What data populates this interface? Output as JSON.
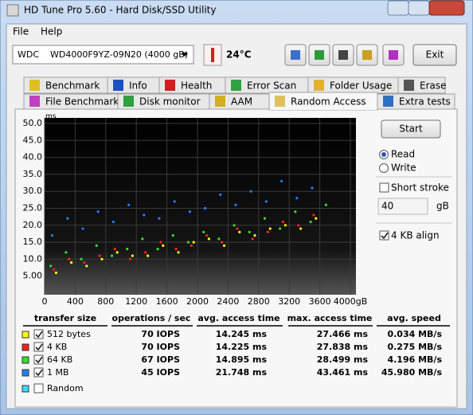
{
  "window": {
    "title": "HD Tune Pro 5.60 - Hard Disk/SSD Utility"
  },
  "menu": [
    "File",
    "Help"
  ],
  "toolbar": {
    "drive": "WDC    WD4000F9YZ-09N20 (4000 gB)",
    "temperature": "24°C",
    "exit": "Exit"
  },
  "tabs": {
    "row1": [
      "Benchmark",
      "Info",
      "Health",
      "Error Scan",
      "Folder Usage",
      "Erase"
    ],
    "row2": [
      "File Benchmark",
      "Disk monitor",
      "AAM",
      "Random Access",
      "Extra tests"
    ],
    "active": 3
  },
  "chart_data": {
    "type": "scatter",
    "y_unit": "ms",
    "ylim": [
      0,
      50
    ],
    "yticks": [
      {
        "value": 5,
        "label": "5.00"
      },
      {
        "value": 10,
        "label": "10.0"
      },
      {
        "value": 15,
        "label": "15.0"
      },
      {
        "value": 20,
        "label": "20.0"
      },
      {
        "value": 25,
        "label": "25.0"
      },
      {
        "value": 30,
        "label": "30.0"
      },
      {
        "value": 35,
        "label": "35.0"
      },
      {
        "value": 40,
        "label": "40.0"
      },
      {
        "value": 45,
        "label": "45.0"
      },
      {
        "value": 50,
        "label": "50.0"
      }
    ],
    "xlim": [
      0,
      4000
    ],
    "xticks": [
      0,
      400,
      800,
      1200,
      1600,
      2000,
      2400,
      2800,
      3200,
      3600,
      {
        "value": 4000,
        "label": "4000gB"
      }
    ],
    "grid": true,
    "series": [
      {
        "color": "#ffff00",
        "x": [
          150,
          350,
          550,
          750,
          950,
          1150,
          1350,
          1550,
          1750,
          1950,
          2150,
          2350,
          2550,
          2750,
          2950,
          3150,
          3350,
          3550
        ],
        "y": [
          6,
          9,
          8,
          10,
          12,
          11,
          11,
          14,
          12,
          15,
          16,
          14,
          18,
          17,
          19,
          20,
          19,
          22
        ]
      },
      {
        "color": "#ff2020",
        "x": [
          120,
          320,
          520,
          720,
          920,
          1120,
          1320,
          1520,
          1720,
          1920,
          2120,
          2320,
          2520,
          2720,
          2920,
          3120,
          3320,
          3520
        ],
        "y": [
          7,
          10,
          9,
          11,
          13,
          10,
          12,
          15,
          13,
          14,
          17,
          15,
          19,
          16,
          18,
          21,
          20,
          23
        ]
      },
      {
        "color": "#30e030",
        "x": [
          80,
          280,
          480,
          680,
          880,
          1080,
          1280,
          1480,
          1680,
          1880,
          2080,
          2280,
          2480,
          2680,
          2880,
          3080,
          3280,
          3480,
          3680
        ],
        "y": [
          8,
          12,
          10,
          14,
          11,
          13,
          16,
          13,
          17,
          15,
          18,
          16,
          20,
          18,
          22,
          19,
          24,
          21,
          26
        ]
      },
      {
        "color": "#2080ff",
        "x": [
          100,
          300,
          500,
          700,
          900,
          1100,
          1300,
          1500,
          1700,
          1900,
          2100,
          2300,
          2500,
          2700,
          2900,
          3100,
          3300,
          3500
        ],
        "y": [
          17,
          22,
          19,
          24,
          21,
          26,
          23,
          22,
          27,
          24,
          25,
          29,
          26,
          30,
          27,
          33,
          28,
          31
        ]
      }
    ]
  },
  "controls": {
    "start": "Start",
    "read": "Read",
    "write": "Write",
    "read_selected": true,
    "short_stroke": "Short stroke",
    "short_stroke_checked": false,
    "short_stroke_value": "40",
    "unit": "gB",
    "align": "4 KB align",
    "align_checked": true
  },
  "results": {
    "columns": [
      "transfer size",
      "operations / sec",
      "avg. access time",
      "max. access time",
      "avg. speed"
    ],
    "colors": [
      "#ffff00",
      "#ff2020",
      "#30e030",
      "#2080ff",
      "#30e0ff"
    ],
    "checked": [
      true,
      true,
      true,
      true,
      false
    ],
    "rows": [
      [
        "512 bytes",
        "70 IOPS",
        "14.245 ms",
        "27.466 ms",
        "0.034 MB/s"
      ],
      [
        "4 KB",
        "70 IOPS",
        "14.225 ms",
        "27.838 ms",
        "0.275 MB/s"
      ],
      [
        "64 KB",
        "67 IOPS",
        "14.895 ms",
        "28.499 ms",
        "4.196 MB/s"
      ],
      [
        "1 MB",
        "45 IOPS",
        "21.748 ms",
        "43.461 ms",
        "45.980 MB/s"
      ],
      [
        "Random"
      ]
    ]
  }
}
